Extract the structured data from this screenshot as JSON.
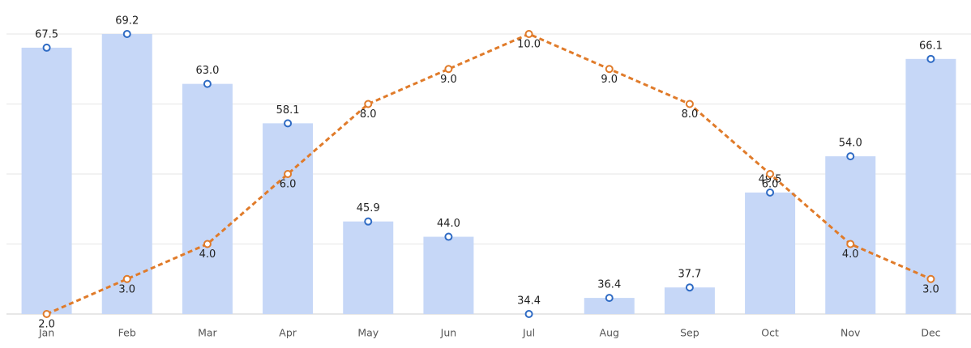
{
  "chart_data": {
    "type": "bar",
    "categories": [
      "Jan",
      "Feb",
      "Mar",
      "Apr",
      "May",
      "Jun",
      "Jul",
      "Aug",
      "Sep",
      "Oct",
      "Nov",
      "Dec"
    ],
    "ylim": [
      34.4,
      69.2
    ],
    "y2lim": [
      2,
      10
    ],
    "y2ticks": [
      2,
      4,
      6,
      8,
      10
    ],
    "grid": true,
    "series": [
      {
        "type": "bar",
        "color": "#c6d7f7",
        "marker_color": "#2f6bc4",
        "values": [
          67.5,
          69.2,
          63.0,
          58.1,
          45.9,
          44.0,
          34.4,
          36.4,
          37.7,
          49.5,
          54.0,
          66.1
        ],
        "value_labels": [
          "67.5",
          "69.2",
          "63.0",
          "58.1",
          "45.9",
          "44.0",
          "34.4",
          "36.4",
          "37.7",
          "49.5",
          "54.0",
          "66.1"
        ]
      },
      {
        "type": "line",
        "axis": "y2",
        "color": "#e07b2a",
        "dashed": true,
        "values": [
          2,
          3,
          4,
          6,
          8,
          9,
          10,
          9,
          8,
          6,
          4,
          3
        ],
        "value_labels": [
          "2.0",
          "3.0",
          "4.0",
          "6.0",
          "8.0",
          "9.0",
          "10.0",
          "9.0",
          "8.0",
          "6.0",
          "4.0",
          "3.0"
        ]
      }
    ]
  }
}
